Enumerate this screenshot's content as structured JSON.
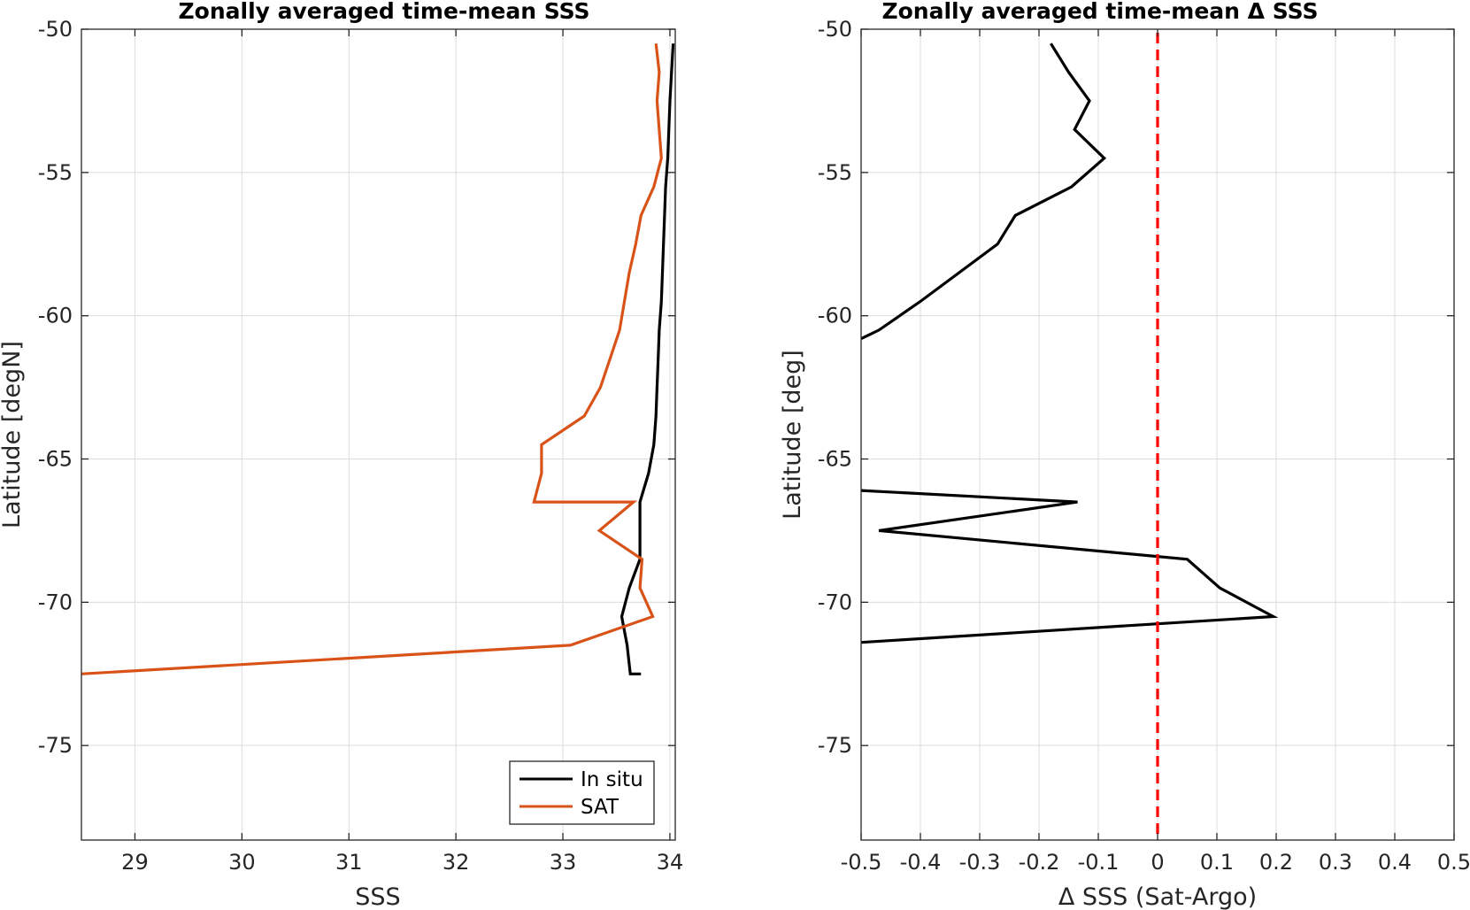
{
  "chart_data": [
    {
      "type": "line",
      "title": "Zonally averaged time-mean SSS",
      "xlabel": "SSS",
      "ylabel": "Latitude [degN]",
      "xlim": [
        28.5,
        34.05
      ],
      "ylim": [
        -78.3,
        -50
      ],
      "xticks": [
        29,
        30,
        31,
        32,
        33,
        34
      ],
      "yticks": [
        -75,
        -70,
        -65,
        -60,
        -55,
        -50
      ],
      "grid": true,
      "legend": "bottom-right",
      "series": [
        {
          "name": "In situ",
          "color": "#000000",
          "x": [
            34.03,
            34.0,
            33.98,
            33.96,
            33.94,
            33.92,
            33.9,
            33.89,
            33.88,
            33.87,
            33.85,
            33.8,
            33.72,
            33.72,
            33.72,
            33.62,
            33.55,
            33.6,
            33.63,
            33.73
          ],
          "y": [
            -50.5,
            -52.5,
            -54.5,
            -55.5,
            -57.5,
            -59.5,
            -60.5,
            -61.5,
            -62.5,
            -63.5,
            -64.5,
            -65.5,
            -66.5,
            -67.5,
            -68.5,
            -69.5,
            -70.5,
            -71.5,
            -72.5,
            -72.5
          ]
        },
        {
          "name": "SAT",
          "color": "#d95319",
          "x": [
            33.87,
            33.9,
            33.88,
            33.92,
            33.85,
            33.73,
            33.68,
            33.62,
            33.53,
            33.44,
            33.35,
            33.2,
            32.8,
            32.8,
            32.73,
            33.66,
            33.34,
            33.74,
            33.72,
            33.84,
            33.07,
            28.5
          ],
          "y": [
            -50.5,
            -51.5,
            -52.5,
            -54.5,
            -55.5,
            -56.5,
            -57.5,
            -58.5,
            -60.5,
            -61.5,
            -62.5,
            -63.5,
            -64.5,
            -65.5,
            -66.5,
            -66.5,
            -67.5,
            -68.5,
            -69.5,
            -70.5,
            -71.5,
            -72.5
          ]
        }
      ]
    },
    {
      "type": "line",
      "title": "Zonally averaged time-mean Δ SSS",
      "xlabel": "Δ SSS (Sat-Argo)",
      "ylabel": "Latitude [deg]",
      "xlim": [
        -0.5,
        0.5
      ],
      "ylim": [
        -78.3,
        -50
      ],
      "xticks": [
        -0.5,
        -0.4,
        -0.3,
        -0.2,
        -0.1,
        0,
        0.1,
        0.2,
        0.3,
        0.4,
        0.5
      ],
      "yticks": [
        -75,
        -70,
        -65,
        -60,
        -55,
        -50
      ],
      "grid": true,
      "series": [
        {
          "color": "#000000",
          "x": [
            -0.18,
            -0.15,
            -0.115,
            -0.14,
            -0.09,
            -0.145,
            -0.24,
            -0.27,
            -0.4,
            -0.47,
            -0.5
          ],
          "y": [
            -50.5,
            -51.5,
            -52.5,
            -53.5,
            -54.5,
            -55.5,
            -56.5,
            -57.5,
            -59.5,
            -60.5,
            -60.8
          ]
        },
        {
          "color": "#000000",
          "x": [
            -0.5,
            -0.135,
            -0.47,
            0.05,
            0.105,
            0.195,
            -0.5
          ],
          "y": [
            -66.1,
            -66.5,
            -67.5,
            -68.5,
            -69.5,
            -70.5,
            -71.4
          ]
        }
      ],
      "reference_line": {
        "x": 0,
        "color": "#ff0000",
        "style": "dashed"
      }
    }
  ]
}
